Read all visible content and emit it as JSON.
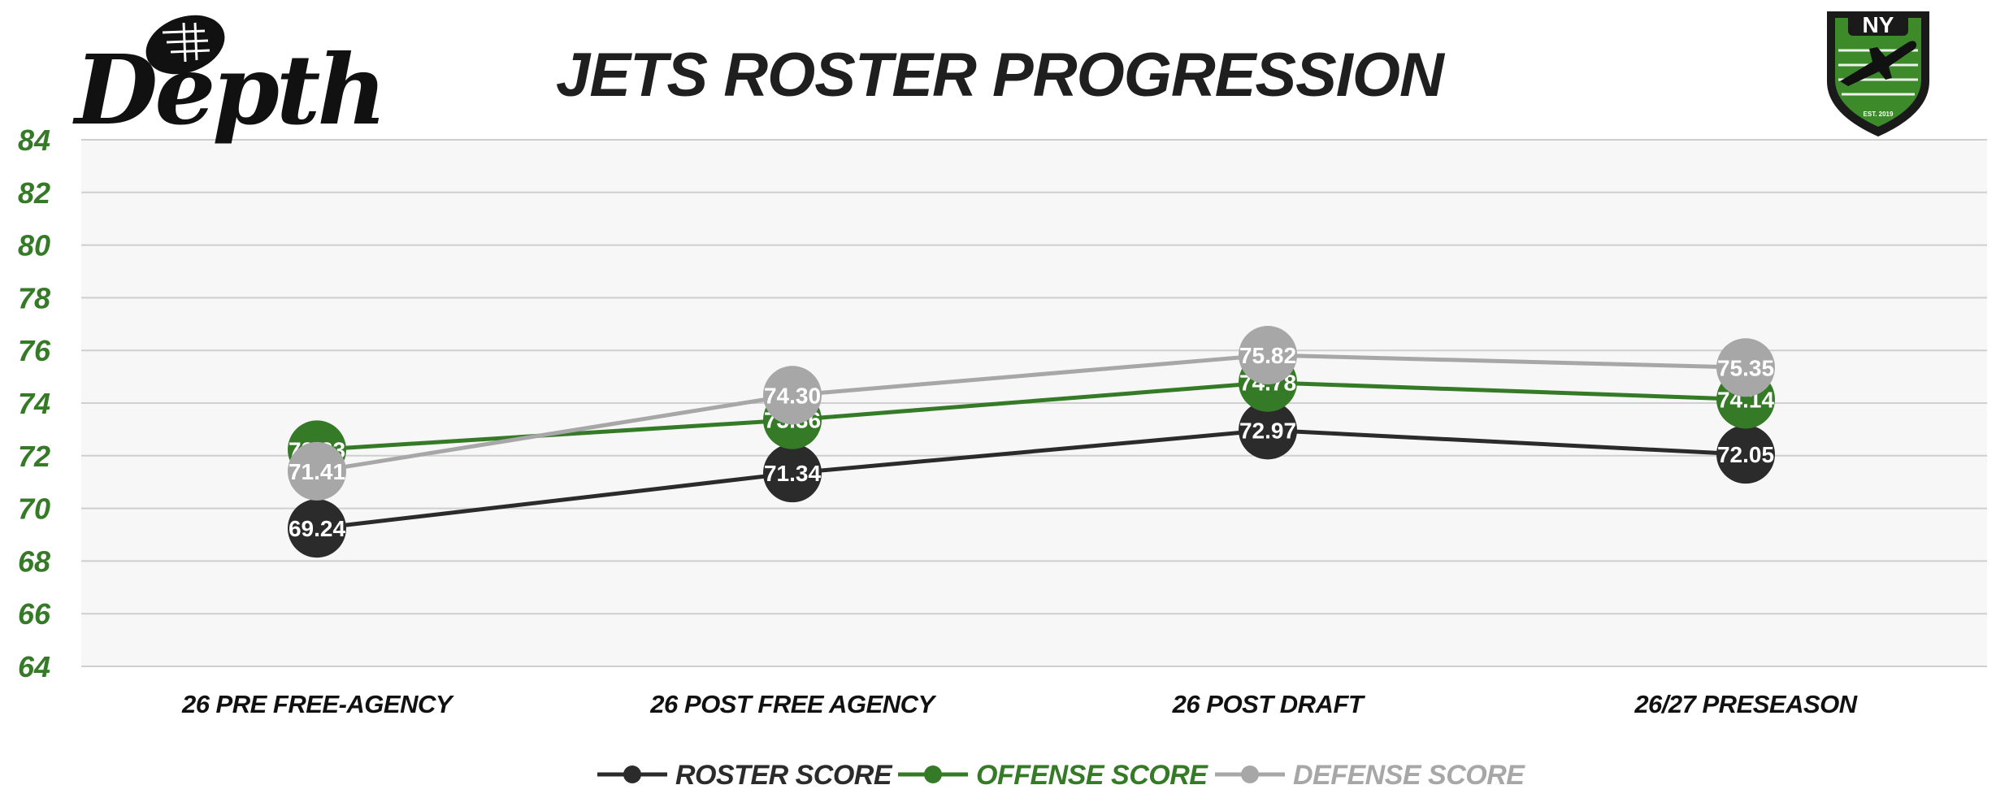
{
  "brand": {
    "logo_text": "Depth",
    "badge_text": "NY",
    "badge_subtext": "EST. 2019"
  },
  "colors": {
    "roster": "#2b2b2b",
    "offense": "#357a26",
    "defense": "#a7a7a7",
    "plot_bg": "#f7f7f7",
    "grid": "#cfcfcf",
    "y_tick": "#357a26",
    "title": "#1f1f1f"
  },
  "chart_data": {
    "type": "line",
    "title": "JETS ROSTER PROGRESSION",
    "xlabel": "",
    "ylabel": "",
    "ylim": [
      64,
      84
    ],
    "y_ticks": [
      "64",
      "66",
      "68",
      "70",
      "72",
      "74",
      "76",
      "78",
      "80",
      "82",
      "84"
    ],
    "grid": true,
    "legend_position": "bottom-center",
    "categories": [
      "26 PRE FREE-AGENCY",
      "26 POST FREE AGENCY",
      "26 POST DRAFT",
      "26/27 PRESEASON"
    ],
    "series": [
      {
        "name": "ROSTER SCORE",
        "color": "#2b2b2b",
        "values": [
          69.24,
          71.34,
          72.97,
          72.05
        ],
        "labels": [
          "69.24",
          "71.34",
          "72.97",
          "72.05"
        ]
      },
      {
        "name": "OFFENSE SCORE",
        "color": "#357a26",
        "values": [
          72.23,
          73.36,
          74.78,
          74.14
        ],
        "labels": [
          "72.23",
          "73.36",
          "74.78",
          "74.14"
        ]
      },
      {
        "name": "DEFENSE SCORE",
        "color": "#a7a7a7",
        "values": [
          71.41,
          74.3,
          75.82,
          75.35
        ],
        "labels": [
          "71.41",
          "74.30",
          "75.82",
          "75.35"
        ]
      }
    ]
  }
}
